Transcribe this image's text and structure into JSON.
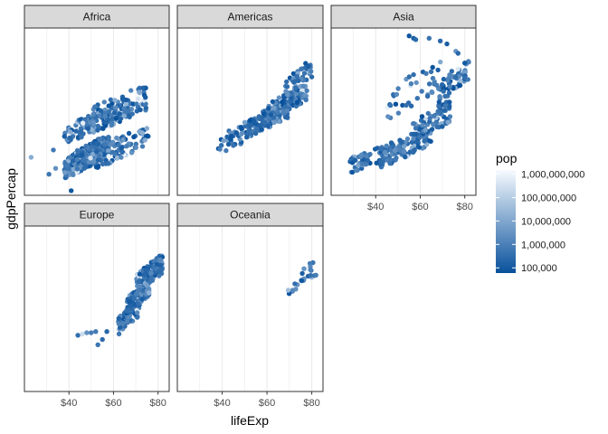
{
  "chart_data": {
    "type": "scatter",
    "title": "",
    "xlabel": "lifeExp",
    "ylabel": "gdpPercap",
    "x_range": [
      20,
      85
    ],
    "x_ticks": [
      40,
      60,
      80
    ],
    "x_tick_labels": [
      "$40",
      "$60",
      "$80"
    ],
    "y_scale": "log",
    "y_range": [
      200,
      150000
    ],
    "y_tick_labels_shown": false,
    "grid": "vertical",
    "facet_strips": [
      "Africa",
      "Americas",
      "Asia",
      "Europe",
      "Oceania"
    ],
    "legend": {
      "title": "pop",
      "position": "right",
      "scale": "log",
      "range": [
        60000,
        1500000000
      ],
      "breaks": [
        100000,
        1000000,
        10000000,
        100000000,
        1000000000
      ],
      "labels": [
        "100,000",
        "1,000,000",
        "10,000,000",
        "100,000,000",
        "1,000,000,000"
      ],
      "colors": {
        "low": "#08519c",
        "high": "#f7fbff"
      }
    },
    "panels": [
      {
        "name": "Africa",
        "clusters": [
          {
            "x": [
              38,
              58
            ],
            "y": [
              400,
              2000
            ],
            "n": 300
          },
          {
            "x": [
              38,
              58
            ],
            "y": [
              1500,
              6000
            ],
            "n": 70
          },
          {
            "x": [
              45,
              75
            ],
            "y": [
              2000,
              14000
            ],
            "n": 70
          },
          {
            "x": [
              52,
              76
            ],
            "y": [
              600,
              3000
            ],
            "n": 80
          },
          {
            "x": [
              55,
              75
            ],
            "y": [
              3000,
              12000
            ],
            "n": 50
          }
        ],
        "points": [
          [
            23,
            900
          ],
          [
            31,
            460
          ],
          [
            33,
            1200
          ],
          [
            34,
            580
          ],
          [
            41,
            240
          ]
        ]
      },
      {
        "name": "Americas",
        "clusters": [
          {
            "x": [
              38,
              58
            ],
            "y": [
              1000,
              4500
            ],
            "n": 50
          },
          {
            "x": [
              50,
              70
            ],
            "y": [
              2000,
              8000
            ],
            "n": 110
          },
          {
            "x": [
              60,
              78
            ],
            "y": [
              4000,
              15000
            ],
            "n": 100
          },
          {
            "x": [
              68,
              80
            ],
            "y": [
              10000,
              40000
            ],
            "n": 40
          }
        ],
        "points": []
      },
      {
        "name": "Asia",
        "clusters": [
          {
            "x": [
              28,
              48
            ],
            "y": [
              500,
              1500
            ],
            "n": 70
          },
          {
            "x": [
              42,
              65
            ],
            "y": [
              600,
              3000
            ],
            "n": 100
          },
          {
            "x": [
              55,
              74
            ],
            "y": [
              1500,
              8000
            ],
            "n": 80
          },
          {
            "x": [
              68,
              82
            ],
            "y": [
              8000,
              40000
            ],
            "n": 55
          },
          {
            "x": [
              45,
              70
            ],
            "y": [
              4000,
              40000
            ],
            "n": 40
          }
        ],
        "points": [
          [
            55,
            110000
          ],
          [
            57,
            100000
          ],
          [
            58,
            95000
          ],
          [
            64,
            100000
          ],
          [
            69,
            90000
          ],
          [
            72,
            80000
          ],
          [
            76,
            60000
          ],
          [
            77,
            55000
          ]
        ]
      },
      {
        "name": "Europe",
        "clusters": [
          {
            "x": [
              62,
              72
            ],
            "y": [
              2000,
              8000
            ],
            "n": 80
          },
          {
            "x": [
              66,
              76
            ],
            "y": [
              5000,
              15000
            ],
            "n": 100
          },
          {
            "x": [
              70,
              82
            ],
            "y": [
              10000,
              45000
            ],
            "n": 150
          }
        ],
        "points": [
          [
            44,
            1900
          ],
          [
            46,
            2000
          ],
          [
            48,
            2100
          ],
          [
            50,
            2100
          ],
          [
            52,
            2200
          ],
          [
            53,
            1300
          ],
          [
            55,
            1600
          ],
          [
            57,
            2200
          ]
        ]
      },
      {
        "name": "Oceania",
        "clusters": [
          {
            "x": [
              69,
              82
            ],
            "y": [
              10000,
              35000
            ],
            "n": 24
          }
        ],
        "points": []
      }
    ]
  }
}
